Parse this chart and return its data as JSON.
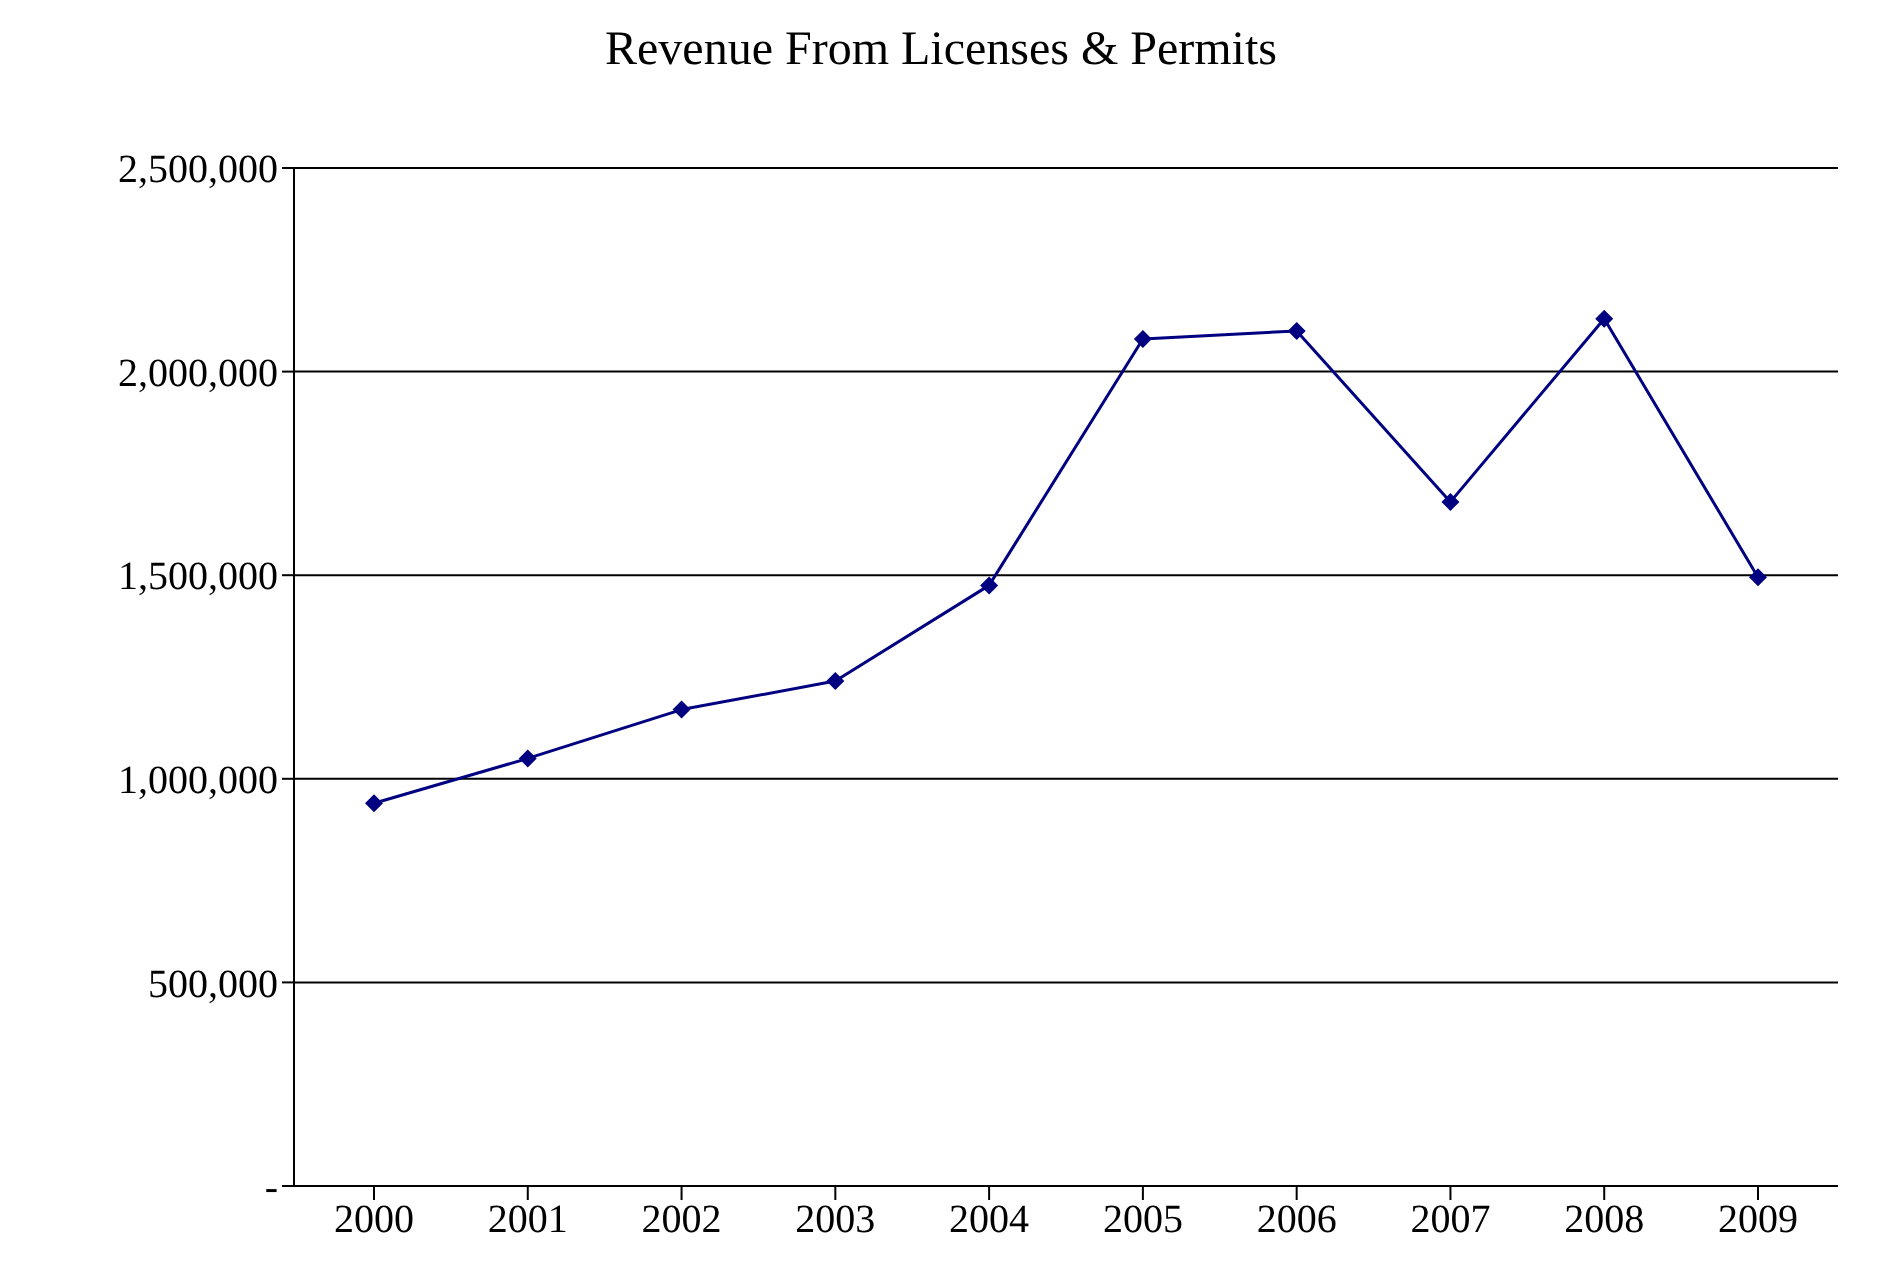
{
  "chart_data": {
    "type": "line",
    "title": "Revenue From Licenses & Permits",
    "categories": [
      "2000",
      "2001",
      "2002",
      "2003",
      "2004",
      "2005",
      "2006",
      "2007",
      "2008",
      "2009"
    ],
    "series": [
      {
        "color": "#000080",
        "values": [
          940000,
          1050000,
          1170000,
          1240000,
          1475000,
          2080000,
          2100000,
          1680000,
          2130000,
          1495000
        ]
      }
    ],
    "ylim": [
      0,
      2500000
    ],
    "yticks": [
      {
        "value": 0,
        "label": "-"
      },
      {
        "value": 500000,
        "label": "500,000"
      },
      {
        "value": 1000000,
        "label": "1,000,000"
      },
      {
        "value": 1500000,
        "label": "1,500,000"
      },
      {
        "value": 2000000,
        "label": "2,000,000"
      },
      {
        "value": 2500000,
        "label": "2,500,000"
      }
    ],
    "grid": "y",
    "marker": "diamond",
    "line_style": "solid"
  }
}
